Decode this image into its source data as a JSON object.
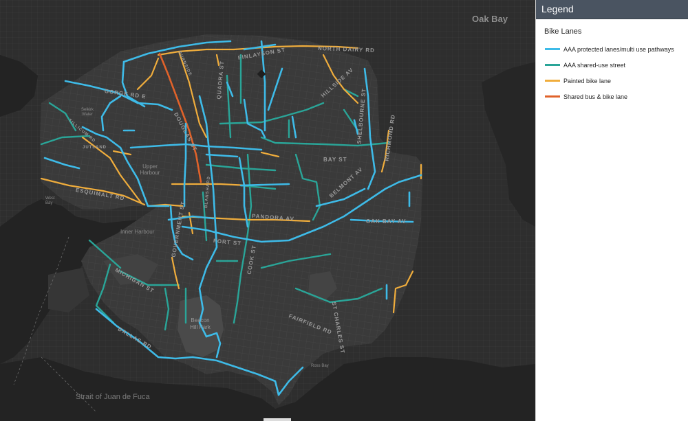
{
  "legend": {
    "title": "Legend",
    "section": "Bike Lanes",
    "items": [
      {
        "label": "AAA protected lanes/multi use pathways",
        "color": "#3ebbe8",
        "icon": "line-swatch-blue"
      },
      {
        "label": "AAA shared-use street",
        "color": "#2aa598",
        "icon": "line-swatch-teal"
      },
      {
        "label": "Painted bike lane",
        "color": "#f0ad3c",
        "icon": "line-swatch-yellow"
      },
      {
        "label": "Shared bus & bike lane",
        "color": "#e0622a",
        "icon": "line-swatch-orange"
      }
    ]
  },
  "map": {
    "places": {
      "oak_bay": "Oak Bay",
      "strait": "Strait of Juan de Fuca",
      "upper_harbour": "Upper Harbour",
      "inner_harbour": "Inner Harbour",
      "selkirk_water": "Selkirk Water",
      "beacon_hill_park": "Beacon Hill Park",
      "ross_bay": "Ross Bay",
      "west_bay": "West Bay"
    },
    "streets": {
      "north_dairy": "NORTH DAIRY RD",
      "finlayson": "FINLAYSON ST",
      "quadra": "QUADRA ST",
      "hillside": "HILLSIDE AV",
      "gorge": "GORGE RD E",
      "douglas": "DOUGLAS ST",
      "bay": "BAY ST",
      "richmond": "RICHMOND RD",
      "shelbourne": "SHELBOURNE ST",
      "esquimalt": "ESQUIMALT RD",
      "pandora": "PANDORA AV",
      "oak_bay_av": "OAK BAY AV",
      "fort": "FORT ST",
      "cook": "COOK ST",
      "government": "GOVERNMENT ST",
      "michigan": "MICHIGAN ST",
      "st_charles": "ST CHARLES ST",
      "fairfield": "FAIRFIELD RD",
      "dallas": "DALLAS RD",
      "belmont": "BELMONT AV",
      "tillicum": "TILLICUM RD",
      "jutland": "JUTLAND",
      "burnside": "BURNSIDE",
      "blanshard": "BLANSHARD"
    }
  }
}
